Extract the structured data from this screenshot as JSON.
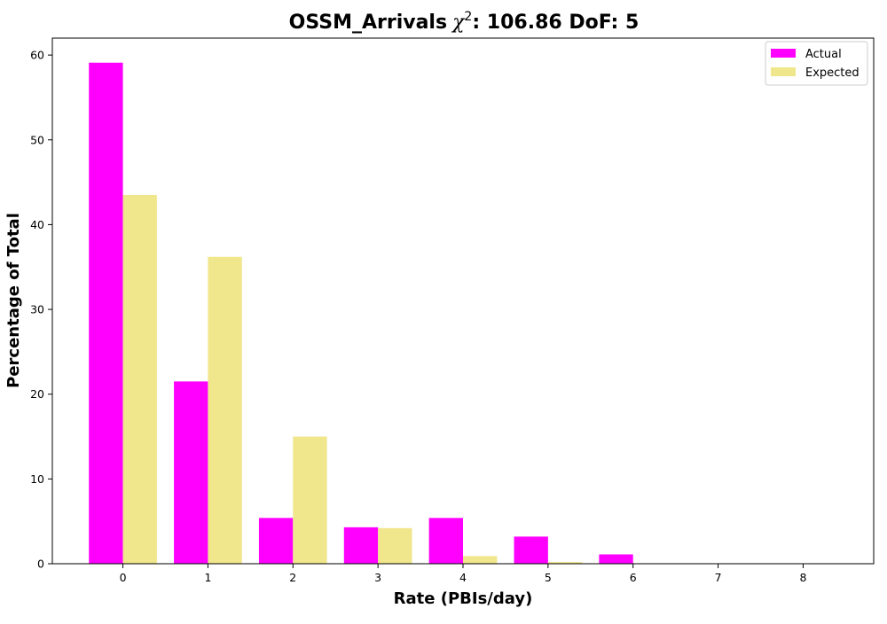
{
  "chart_data": {
    "type": "bar",
    "title": "OSSM_Arrivals",
    "title_chi_symbol": "χ",
    "title_chi_exponent": "2",
    "title_suffix": ": 106.86 DoF: 5",
    "xlabel": "Rate (PBIs/day)",
    "ylabel": "Percentage of Total",
    "x": [
      0,
      1,
      2,
      3,
      4,
      5,
      6,
      7,
      8
    ],
    "x_tick_labels": [
      "0",
      "1",
      "2",
      "3",
      "4",
      "5",
      "6",
      "7",
      "8"
    ],
    "xlim": [
      -0.83,
      8.83
    ],
    "ylim": [
      0,
      62
    ],
    "y_ticks": [
      0,
      10,
      20,
      30,
      40,
      50,
      60
    ],
    "y_tick_labels": [
      "0",
      "10",
      "20",
      "30",
      "40",
      "50",
      "60"
    ],
    "grid": false,
    "legend_position": "top-right",
    "series": [
      {
        "name": "Actual",
        "color": "#ff00ff",
        "values": [
          59.1,
          21.5,
          5.4,
          4.3,
          5.4,
          3.2,
          1.1,
          0,
          0
        ]
      },
      {
        "name": "Expected",
        "color": "#f0e68c",
        "values": [
          43.5,
          36.2,
          15.0,
          4.2,
          0.9,
          0.2,
          0,
          0,
          0
        ]
      }
    ]
  }
}
